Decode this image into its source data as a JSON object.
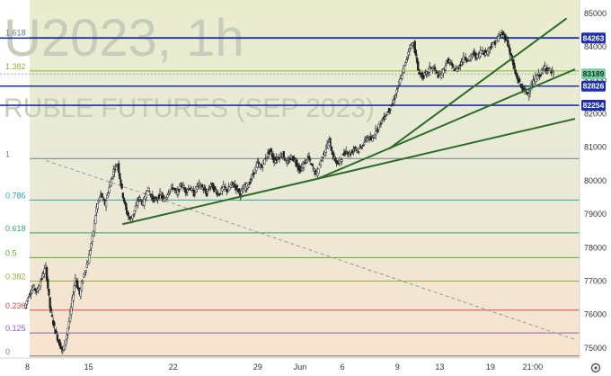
{
  "chart_data": {
    "type": "candlestick",
    "watermark": {
      "line1": "U2023, 1h",
      "line2": "RUBLE FUTURES (SEP 2023)"
    },
    "y_axis": {
      "range": [
        74700,
        85400
      ],
      "ticks": [
        75000,
        76000,
        77000,
        78000,
        79000,
        80000,
        81000,
        82000,
        83000,
        84000,
        85000
      ]
    },
    "x_axis": {
      "ticks": [
        {
          "label": "8",
          "x": 0
        },
        {
          "label": "15",
          "x": 15
        },
        {
          "label": "22",
          "x": 35
        },
        {
          "label": "29",
          "x": 55
        },
        {
          "label": "Jun",
          "x": 65
        },
        {
          "label": "6",
          "x": 75
        },
        {
          "label": "9",
          "x": 88
        },
        {
          "label": "13",
          "x": 98
        },
        {
          "label": "19",
          "x": 110
        },
        {
          "label": "21:00",
          "x": 120
        }
      ],
      "range": [
        0,
        130
      ]
    },
    "fibonacci": {
      "levels": [
        {
          "label": "1.618",
          "value": 84280,
          "color": "#5b7d96"
        },
        {
          "label": "1.382",
          "value": 83280,
          "color": "#9aaa3c"
        },
        {
          "label": "1",
          "value": 80660,
          "color": "#7a7a7a"
        },
        {
          "label": "0.786",
          "value": 79420,
          "color": "#2aa7a0"
        },
        {
          "label": "0.618",
          "value": 78440,
          "color": "#3aa070"
        },
        {
          "label": "0.5",
          "value": 77700,
          "color": "#55b030"
        },
        {
          "label": "0.382",
          "value": 77000,
          "color": "#9aaa3c"
        },
        {
          "label": "0.236",
          "value": 76130,
          "color": "#d24b4b"
        },
        {
          "label": "0.125",
          "value": 75450,
          "color": "#8a62b0"
        },
        {
          "label": "0",
          "value": 74760,
          "color": "#7a7a7a"
        }
      ]
    },
    "price_lines": [
      {
        "label": "84263",
        "value": 84263,
        "color": "#1e2fa8"
      },
      {
        "label": "82826",
        "value": 82826,
        "color": "#1e2fa8"
      },
      {
        "label": "82254",
        "value": 82254,
        "color": "#1e2fa8"
      }
    ],
    "last_price": {
      "label": "83189",
      "value": 83189,
      "color": "#7cc9a4"
    },
    "trendlines": [
      {
        "from": [
          23,
          78700
        ],
        "to": [
          130,
          81850
        ],
        "color": "#2e6b2a"
      },
      {
        "from": [
          69,
          80050
        ],
        "to": [
          130,
          83330
        ],
        "color": "#2e6b2a"
      },
      {
        "from": [
          86,
          80950
        ],
        "to": [
          128,
          84850
        ],
        "color": "#2e6b2a"
      }
    ],
    "diagonal": {
      "from": [
        5,
        80600
      ],
      "to": [
        130,
        75250
      ],
      "color": "#999999"
    },
    "price_path": [
      [
        0,
        76200
      ],
      [
        1,
        76600
      ],
      [
        2,
        76800
      ],
      [
        3,
        76700
      ],
      [
        4,
        77100
      ],
      [
        5,
        77400
      ],
      [
        6,
        76200
      ],
      [
        7,
        75600
      ],
      [
        8,
        75200
      ],
      [
        9,
        74900
      ],
      [
        10,
        75400
      ],
      [
        11,
        76200
      ],
      [
        12,
        77100
      ],
      [
        13,
        76600
      ],
      [
        14,
        77200
      ],
      [
        15,
        77600
      ],
      [
        16,
        78300
      ],
      [
        17,
        79200
      ],
      [
        18,
        79600
      ],
      [
        19,
        79300
      ],
      [
        20,
        79800
      ],
      [
        21,
        80300
      ],
      [
        22,
        80500
      ],
      [
        23,
        79700
      ],
      [
        24,
        79100
      ],
      [
        25,
        78800
      ],
      [
        26,
        79100
      ],
      [
        27,
        79500
      ],
      [
        28,
        79300
      ],
      [
        29,
        79800
      ],
      [
        30,
        79500
      ],
      [
        31,
        79400
      ],
      [
        32,
        79600
      ],
      [
        33,
        79400
      ],
      [
        34,
        79700
      ],
      [
        35,
        79800
      ],
      [
        36,
        79600
      ],
      [
        37,
        79900
      ],
      [
        38,
        79700
      ],
      [
        39,
        79800
      ],
      [
        40,
        79600
      ],
      [
        41,
        79900
      ],
      [
        42,
        79800
      ],
      [
        43,
        79600
      ],
      [
        44,
        79900
      ],
      [
        45,
        79700
      ],
      [
        46,
        79600
      ],
      [
        47,
        79800
      ],
      [
        48,
        79700
      ],
      [
        49,
        79900
      ],
      [
        50,
        79800
      ],
      [
        51,
        79600
      ],
      [
        52,
        79800
      ],
      [
        53,
        79900
      ],
      [
        54,
        80200
      ],
      [
        55,
        80500
      ],
      [
        56,
        80400
      ],
      [
        57,
        80700
      ],
      [
        58,
        80900
      ],
      [
        59,
        80600
      ],
      [
        60,
        80700
      ],
      [
        61,
        80800
      ],
      [
        62,
        80500
      ],
      [
        63,
        80700
      ],
      [
        64,
        80600
      ],
      [
        65,
        80300
      ],
      [
        66,
        80500
      ],
      [
        67,
        80700
      ],
      [
        68,
        80400
      ],
      [
        69,
        80200
      ],
      [
        70,
        80600
      ],
      [
        71,
        80900
      ],
      [
        72,
        81200
      ],
      [
        73,
        80700
      ],
      [
        74,
        80500
      ],
      [
        75,
        80700
      ],
      [
        76,
        80900
      ],
      [
        77,
        80800
      ],
      [
        78,
        81000
      ],
      [
        79,
        80900
      ],
      [
        80,
        81100
      ],
      [
        81,
        81300
      ],
      [
        82,
        81200
      ],
      [
        83,
        81500
      ],
      [
        84,
        81700
      ],
      [
        85,
        81900
      ],
      [
        86,
        82100
      ],
      [
        87,
        82300
      ],
      [
        88,
        82700
      ],
      [
        89,
        83100
      ],
      [
        90,
        83500
      ],
      [
        91,
        84000
      ],
      [
        92,
        84100
      ],
      [
        93,
        83300
      ],
      [
        94,
        83100
      ],
      [
        95,
        83200
      ],
      [
        96,
        83400
      ],
      [
        97,
        83300
      ],
      [
        98,
        83100
      ],
      [
        99,
        83300
      ],
      [
        100,
        83600
      ],
      [
        101,
        83400
      ],
      [
        102,
        83300
      ],
      [
        103,
        83500
      ],
      [
        104,
        83700
      ],
      [
        105,
        83600
      ],
      [
        106,
        83800
      ],
      [
        107,
        83700
      ],
      [
        108,
        83900
      ],
      [
        109,
        83800
      ],
      [
        110,
        84000
      ],
      [
        111,
        84100
      ],
      [
        112,
        84300
      ],
      [
        113,
        84400
      ],
      [
        114,
        84200
      ],
      [
        115,
        83700
      ],
      [
        116,
        83200
      ],
      [
        117,
        82900
      ],
      [
        118,
        82700
      ],
      [
        119,
        82600
      ],
      [
        120,
        82900
      ],
      [
        121,
        83100
      ],
      [
        122,
        83200
      ],
      [
        123,
        83400
      ],
      [
        124,
        83300
      ],
      [
        125,
        83200
      ]
    ]
  }
}
